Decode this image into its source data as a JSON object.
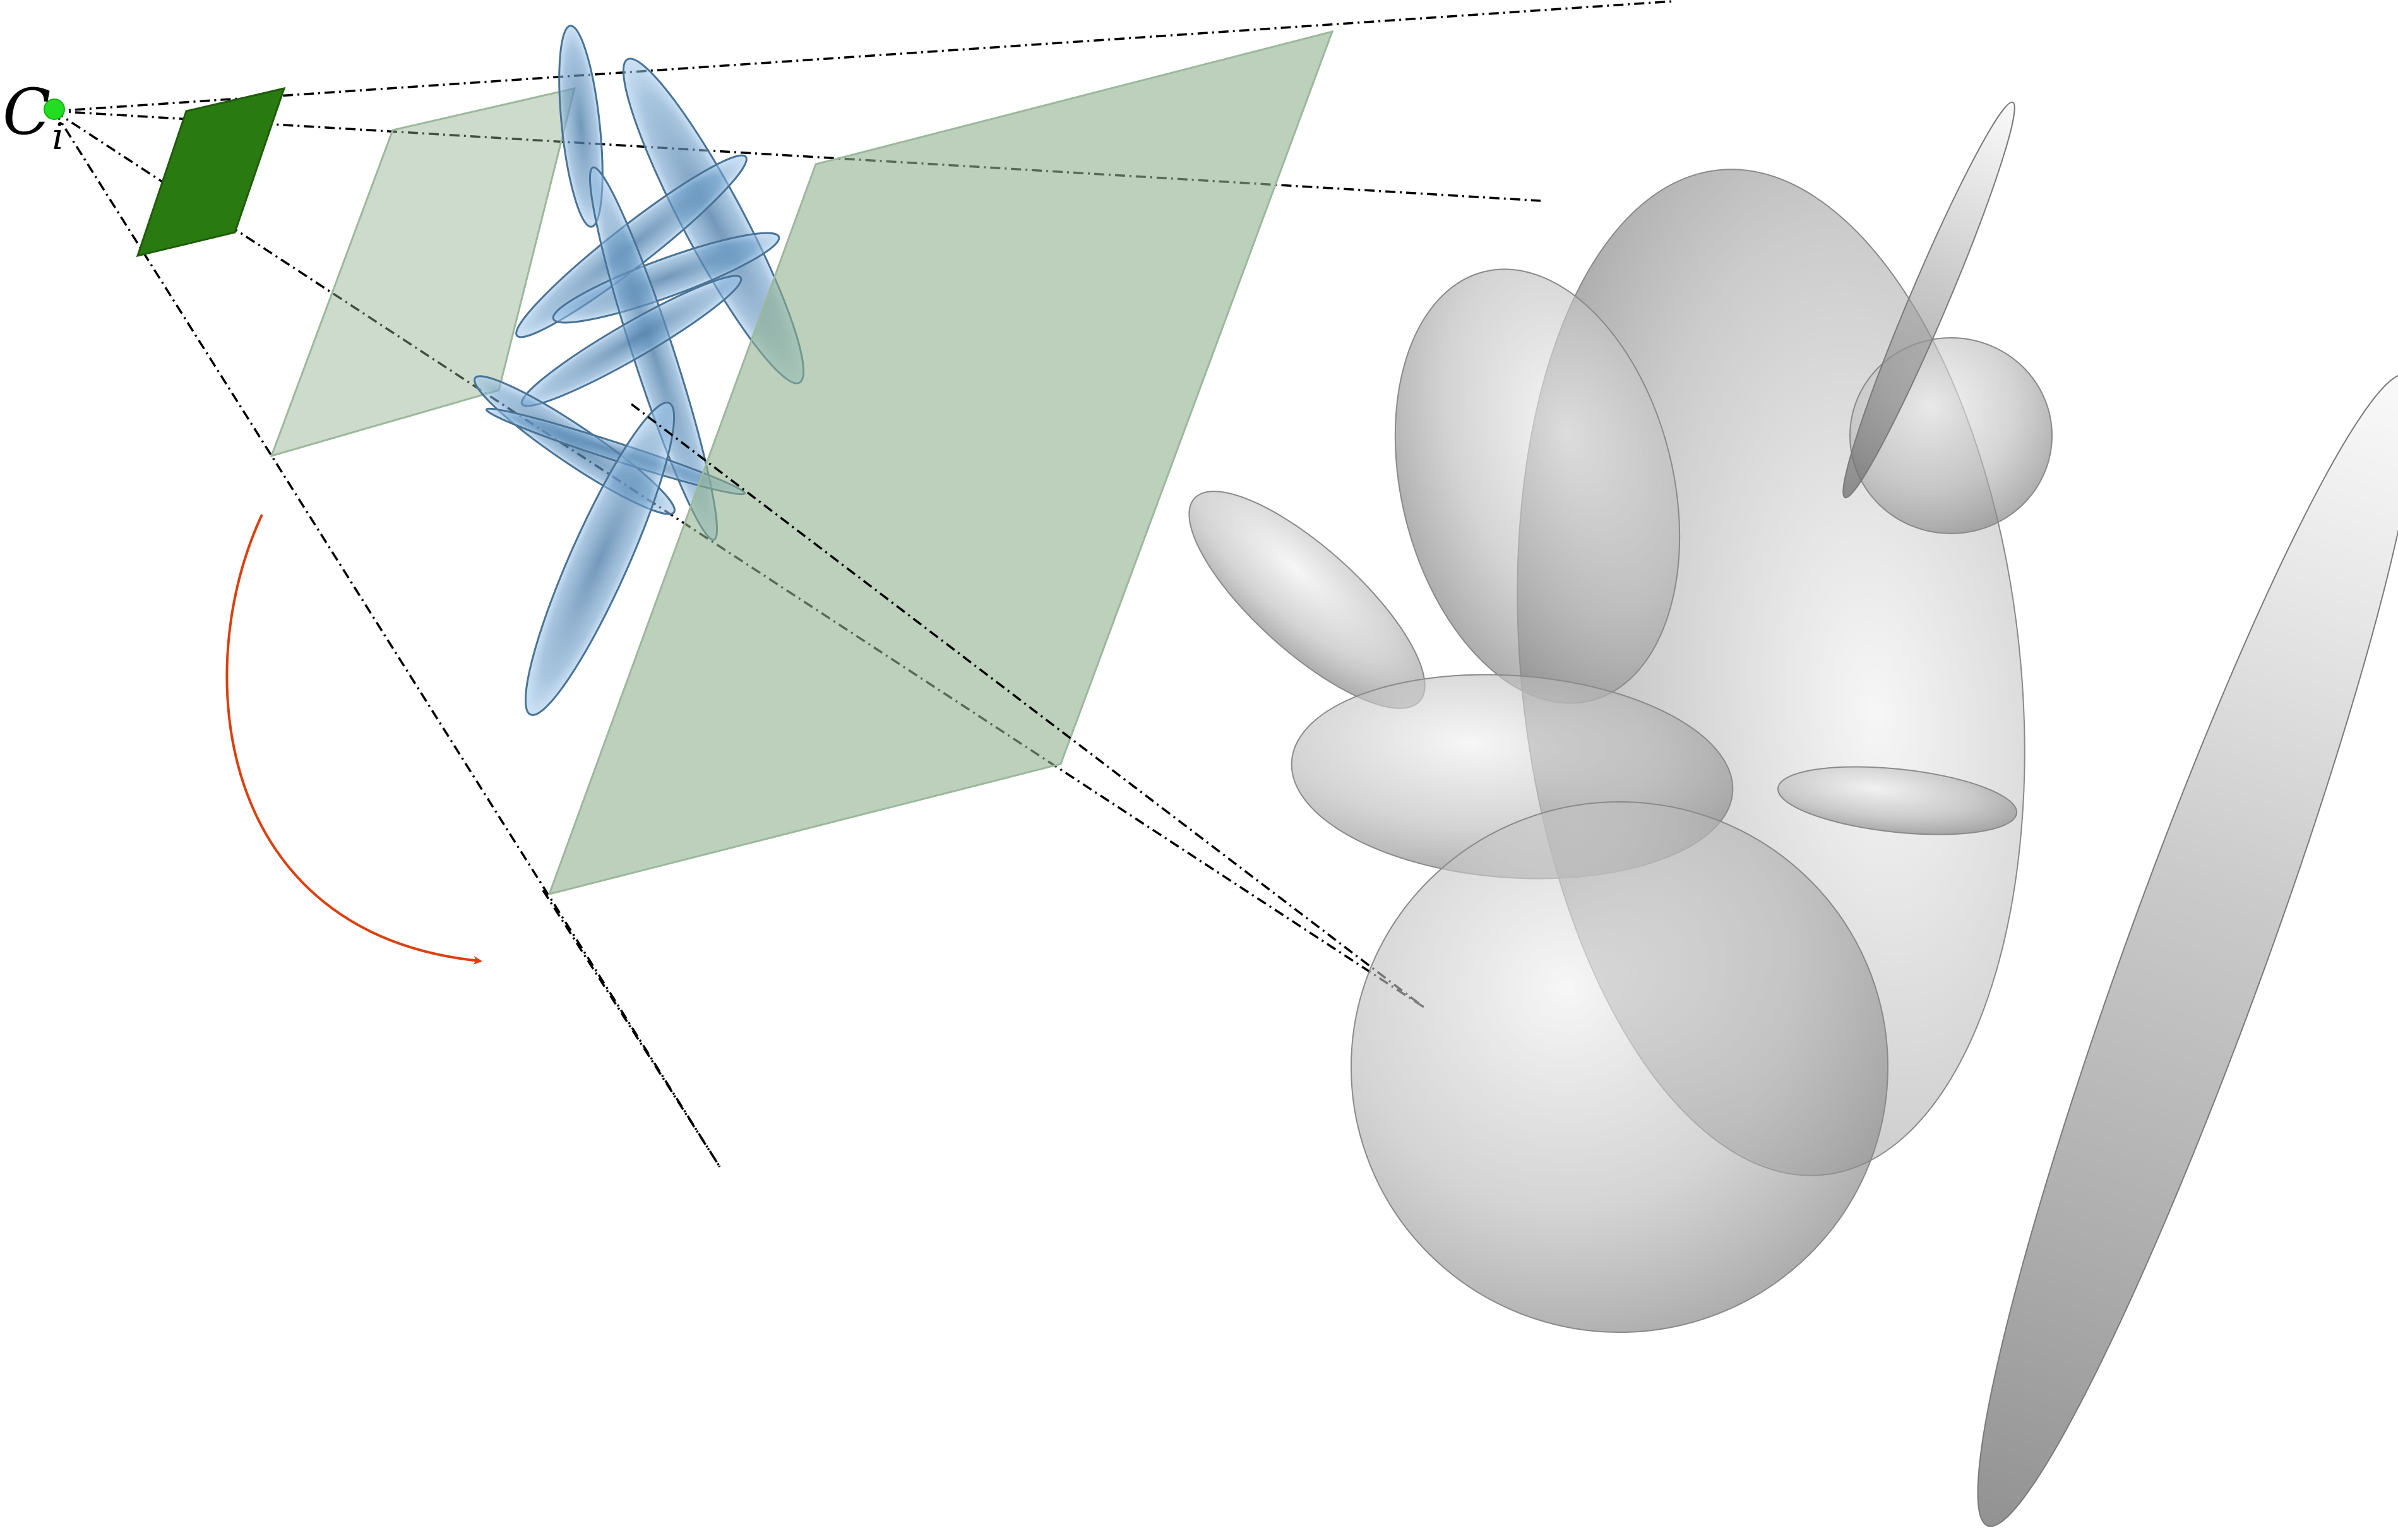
{
  "diagram": {
    "camera_label": {
      "main": "C",
      "subscript": "i"
    },
    "colors": {
      "camera_center": "#22dd22",
      "image_plane": "#2a7a12",
      "projection_planes": "#8fb08f",
      "projected_gaussians": "#5b8fbf",
      "gaussians_3d": "#8c8c8c",
      "frustum_lines": "#000000",
      "rotation_arrow": "#d9410f"
    },
    "icons": {
      "camera_center": "camera-center-dot-icon",
      "rotation_arrow": "curved-arrow-icon"
    }
  }
}
